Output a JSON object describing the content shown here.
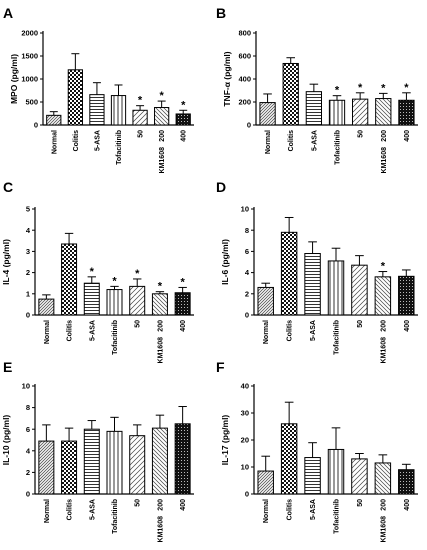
{
  "figure": {
    "panels": [
      "A",
      "B",
      "C",
      "D",
      "E",
      "F"
    ],
    "group_label": "KM1608"
  },
  "chart_data": [
    {
      "panel": "A",
      "type": "bar",
      "ylabel": "MPO (pg/ml)",
      "ylim": [
        0,
        2000
      ],
      "yticks": [
        0,
        500,
        1000,
        1500,
        2000
      ],
      "categories": [
        "Normal",
        "Colitis",
        "5-ASA",
        "Tofacitinib",
        "50",
        "200",
        "400"
      ],
      "values": [
        210,
        1200,
        660,
        640,
        320,
        380,
        240
      ],
      "errors": [
        80,
        350,
        260,
        230,
        100,
        140,
        80
      ],
      "significance": [
        "",
        "",
        "",
        "",
        "*",
        "*",
        "*"
      ]
    },
    {
      "panel": "B",
      "type": "bar",
      "ylabel": "TNF-α (pg/ml)",
      "ylim": [
        0,
        800
      ],
      "yticks": [
        0,
        200,
        400,
        600,
        800
      ],
      "categories": [
        "Normal",
        "Colitis",
        "5-ASA",
        "Tofacitinib",
        "50",
        "200",
        "400"
      ],
      "values": [
        195,
        535,
        290,
        215,
        225,
        230,
        215
      ],
      "errors": [
        75,
        50,
        65,
        40,
        55,
        45,
        65
      ],
      "significance": [
        "",
        "",
        "",
        "*",
        "*",
        "*",
        "*"
      ]
    },
    {
      "panel": "C",
      "type": "bar",
      "ylabel": "IL-4 (pg/ml)",
      "ylim": [
        0,
        5
      ],
      "yticks": [
        0,
        1,
        2,
        3,
        4,
        5
      ],
      "categories": [
        "Normal",
        "Colitis",
        "5-ASA",
        "Tofacitinib",
        "50",
        "200",
        "400"
      ],
      "values": [
        0.75,
        3.35,
        1.5,
        1.2,
        1.35,
        1.0,
        1.05
      ],
      "errors": [
        0.2,
        0.5,
        0.3,
        0.15,
        0.35,
        0.1,
        0.25
      ],
      "significance": [
        "",
        "",
        "*",
        "*",
        "*",
        "*",
        "*"
      ]
    },
    {
      "panel": "D",
      "type": "bar",
      "ylabel": "IL-6 (pg/ml)",
      "ylim": [
        0,
        10
      ],
      "yticks": [
        0,
        2,
        4,
        6,
        8,
        10
      ],
      "categories": [
        "Normal",
        "Colitis",
        "5-ASA",
        "Tofacitinib",
        "50",
        "200",
        "400"
      ],
      "values": [
        2.6,
        7.8,
        5.8,
        5.1,
        4.7,
        3.6,
        3.65
      ],
      "errors": [
        0.4,
        1.4,
        1.1,
        1.2,
        0.9,
        0.5,
        0.6
      ],
      "significance": [
        "",
        "",
        "",
        "",
        "",
        "*",
        ""
      ]
    },
    {
      "panel": "E",
      "type": "bar",
      "ylabel": "IL-10 (pg/ml)",
      "ylim": [
        0,
        10
      ],
      "yticks": [
        0,
        2,
        4,
        6,
        8,
        10
      ],
      "categories": [
        "Normal",
        "Colitis",
        "5-ASA",
        "Tofacitinib",
        "50",
        "200",
        "400"
      ],
      "values": [
        4.9,
        4.9,
        6.0,
        5.8,
        5.4,
        6.1,
        6.5
      ],
      "errors": [
        1.5,
        1.2,
        0.8,
        1.3,
        1.0,
        1.2,
        1.6
      ],
      "significance": [
        "",
        "",
        "",
        "",
        "",
        "",
        ""
      ]
    },
    {
      "panel": "F",
      "type": "bar",
      "ylabel": "IL-17 (pg/ml)",
      "ylim": [
        0,
        40
      ],
      "yticks": [
        0,
        10,
        20,
        30,
        40
      ],
      "categories": [
        "Normal",
        "Colitis",
        "5-ASA",
        "Tofacitinib",
        "50",
        "200",
        "400"
      ],
      "values": [
        8.5,
        26,
        13.5,
        16.5,
        13,
        11.5,
        9
      ],
      "errors": [
        5.5,
        8,
        5.5,
        8,
        2,
        3,
        2
      ],
      "significance": [
        "",
        "",
        "",
        "",
        "",
        "",
        ""
      ]
    }
  ]
}
